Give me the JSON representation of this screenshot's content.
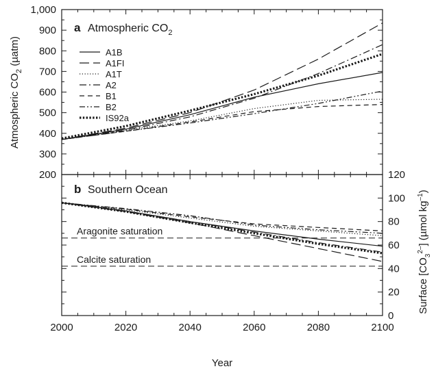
{
  "chart_data": [
    {
      "type": "line",
      "panel_letter": "a",
      "title_main": "Atmospheric CO",
      "title_sub": "2",
      "ylabel_main": "Atmospheric CO",
      "ylabel_sub": "2",
      "ylabel_unit": " (µatm)",
      "xlim": [
        2000,
        2100
      ],
      "ylim": [
        200,
        1000
      ],
      "yticks": [
        "200",
        "300",
        "400",
        "500",
        "600",
        "700",
        "800",
        "900",
        "1,000"
      ],
      "ytick_values": [
        200,
        300,
        400,
        500,
        600,
        700,
        800,
        900,
        1000
      ],
      "legend_position": "top-left",
      "series": [
        {
          "name": "A1B",
          "style": "solid",
          "x": [
            2000,
            2020,
            2040,
            2060,
            2080,
            2100
          ],
          "values": [
            370,
            420,
            490,
            575,
            640,
            695
          ]
        },
        {
          "name": "A1FI",
          "style": "longdash",
          "x": [
            2000,
            2020,
            2040,
            2060,
            2080,
            2100
          ],
          "values": [
            370,
            425,
            500,
            610,
            760,
            935
          ]
        },
        {
          "name": "A1T",
          "style": "dotted",
          "x": [
            2000,
            2020,
            2040,
            2060,
            2080,
            2100
          ],
          "values": [
            370,
            415,
            460,
            520,
            560,
            565
          ]
        },
        {
          "name": "A2",
          "style": "dashdot",
          "x": [
            2000,
            2020,
            2040,
            2060,
            2080,
            2100
          ],
          "values": [
            370,
            415,
            480,
            570,
            690,
            830
          ]
        },
        {
          "name": "B1",
          "style": "dash",
          "x": [
            2000,
            2020,
            2040,
            2060,
            2080,
            2100
          ],
          "values": [
            370,
            410,
            455,
            505,
            530,
            540
          ]
        },
        {
          "name": "B2",
          "style": "dashdotdot",
          "x": [
            2000,
            2020,
            2040,
            2060,
            2080,
            2100
          ],
          "values": [
            370,
            410,
            450,
            495,
            545,
            605
          ]
        },
        {
          "name": "IS92a",
          "style": "heavydotted",
          "x": [
            2000,
            2020,
            2040,
            2060,
            2080,
            2100
          ],
          "values": [
            375,
            435,
            510,
            590,
            680,
            785
          ]
        }
      ]
    },
    {
      "type": "line",
      "panel_letter": "b",
      "title": "Southern Ocean",
      "ylabel_prefix": "Surface [CO",
      "ylabel_sub1": "3",
      "ylabel_sup": "2–",
      "ylabel_mid": "] (µmol kg",
      "ylabel_sup2": "–1",
      "ylabel_end": ")",
      "xlabel": "Year",
      "xlim": [
        2000,
        2100
      ],
      "ylim": [
        0,
        120
      ],
      "xticks": [
        "2000",
        "2020",
        "2040",
        "2060",
        "2080",
        "2100"
      ],
      "xtick_values": [
        2000,
        2020,
        2040,
        2060,
        2080,
        2100
      ],
      "yticks": [
        "0",
        "20",
        "40",
        "60",
        "80",
        "100",
        "120"
      ],
      "ytick_values": [
        0,
        20,
        40,
        60,
        80,
        100,
        120
      ],
      "annotations": [
        {
          "text": "Aragonite saturation",
          "y": 66
        },
        {
          "text": "Calcite saturation",
          "y": 42
        }
      ],
      "series": [
        {
          "name": "A1B",
          "style": "solid",
          "x": [
            2000,
            2020,
            2040,
            2060,
            2080,
            2100
          ],
          "values": [
            96,
            89,
            80,
            72,
            65,
            59
          ]
        },
        {
          "name": "A1FI",
          "style": "longdash",
          "x": [
            2000,
            2020,
            2040,
            2060,
            2080,
            2100
          ],
          "values": [
            96,
            88.5,
            79,
            68,
            57,
            46
          ]
        },
        {
          "name": "A1T",
          "style": "dotted",
          "x": [
            2000,
            2020,
            2040,
            2060,
            2080,
            2100
          ],
          "values": [
            96,
            90,
            83,
            76,
            72,
            68
          ]
        },
        {
          "name": "A2",
          "style": "dashdot",
          "x": [
            2000,
            2020,
            2040,
            2060,
            2080,
            2100
          ],
          "values": [
            96,
            89,
            80,
            71,
            62,
            54
          ]
        },
        {
          "name": "B1",
          "style": "dash",
          "x": [
            2000,
            2020,
            2040,
            2060,
            2080,
            2100
          ],
          "values": [
            96,
            90.5,
            84,
            78,
            75,
            72
          ]
        },
        {
          "name": "B2",
          "style": "dashdotdot",
          "x": [
            2000,
            2020,
            2040,
            2060,
            2080,
            2100
          ],
          "values": [
            96,
            91,
            85,
            77,
            73,
            70
          ]
        },
        {
          "name": "IS92a",
          "style": "heavydotted",
          "x": [
            2000,
            2020,
            2040,
            2060,
            2080,
            2100
          ],
          "values": [
            96,
            88.5,
            79,
            70,
            61,
            53
          ]
        }
      ]
    }
  ]
}
